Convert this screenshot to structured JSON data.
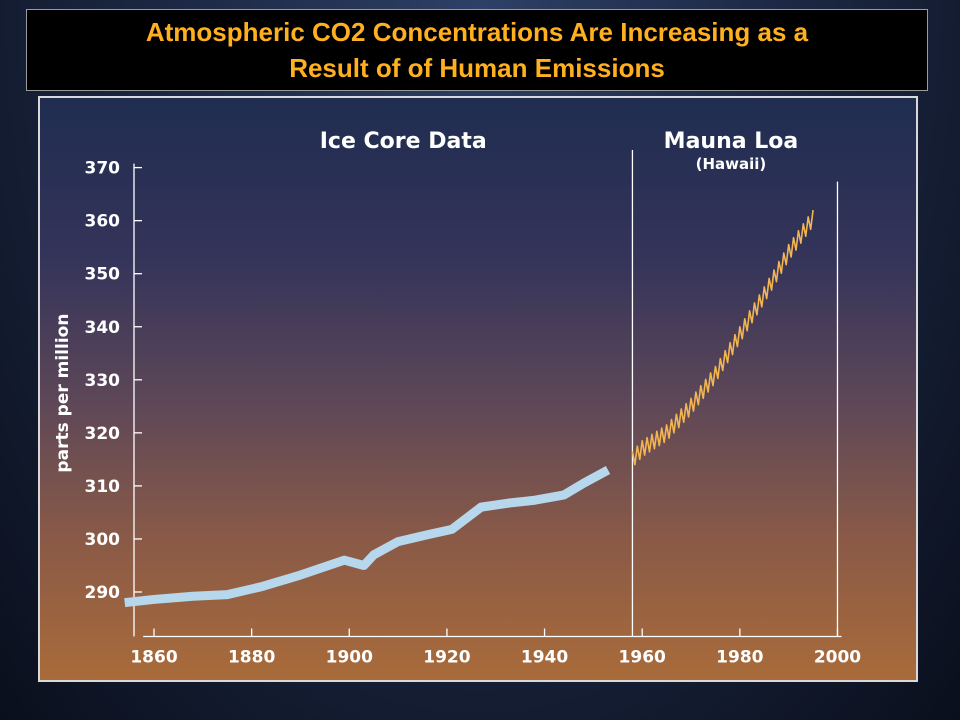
{
  "title": "Atmospheric CO2 Concentrations Are Increasing as a\nResult of of Human Emissions",
  "colors": {
    "title_text": "#ffb020",
    "ice_core_line": "#b6d7ec",
    "mauna_loa_line": "#f2b550",
    "axis": "#ffffff"
  },
  "chart_data": {
    "type": "line",
    "title": "",
    "xlabel": "",
    "ylabel": "parts per million",
    "xlim": [
      1850,
      2000
    ],
    "ylim": [
      285,
      370
    ],
    "x_ticks": [
      1860,
      1880,
      1900,
      1920,
      1940,
      1960,
      1980,
      2000
    ],
    "y_ticks": [
      290,
      300,
      310,
      320,
      330,
      340,
      350,
      360,
      370
    ],
    "grid": false,
    "section_labels": {
      "ice_core": "Ice Core Data",
      "mauna_loa": "Mauna Loa",
      "mauna_loa_sub": "(Hawaii)"
    },
    "divider_x": 1958,
    "series": [
      {
        "name": "Ice Core Data",
        "style": "thick",
        "x": [
          1854,
          1860,
          1868,
          1875,
          1882,
          1890,
          1899,
          1903,
          1905,
          1910,
          1916,
          1921,
          1927,
          1933,
          1938,
          1944,
          1948,
          1953
        ],
        "y": [
          288,
          288.6,
          289.2,
          289.5,
          291,
          293.2,
          296,
          295,
          297,
          299.5,
          300.8,
          301.8,
          306,
          306.8,
          307.3,
          308.3,
          310.5,
          313
        ]
      },
      {
        "name": "Mauna Loa",
        "style": "seasonal",
        "x": [
          1958,
          1960,
          1965,
          1970,
          1975,
          1980,
          1985,
          1990,
          1995
        ],
        "y": [
          315,
          317,
          320,
          325,
          331,
          338.5,
          346,
          354,
          360.5
        ],
        "seasonal_amplitude": 3
      }
    ]
  }
}
